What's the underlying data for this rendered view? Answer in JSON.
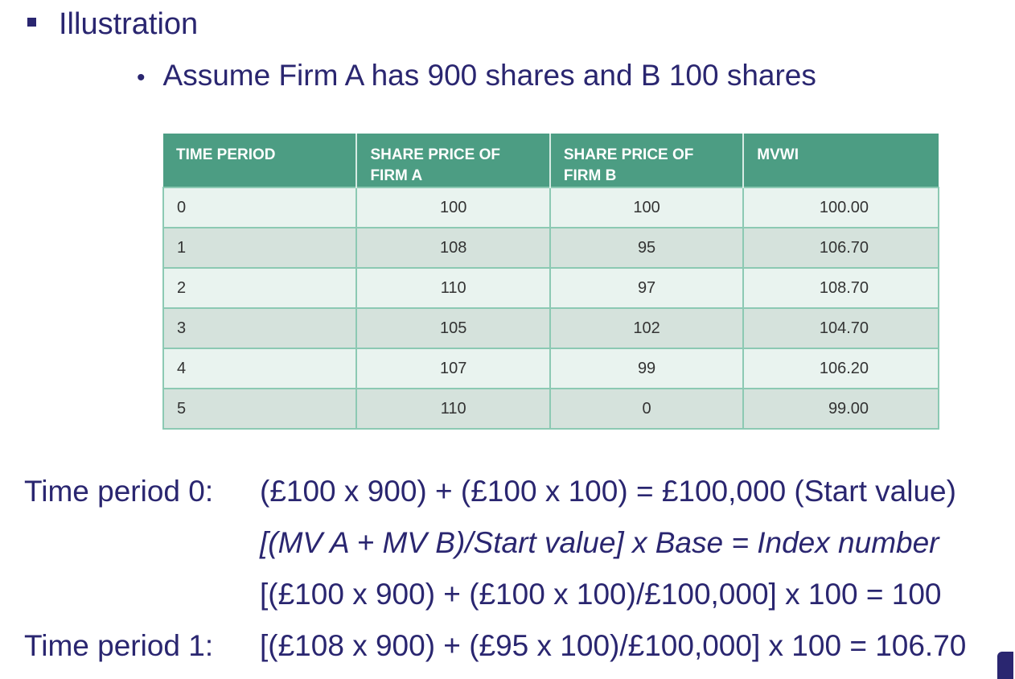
{
  "bullet_main": "Illustration",
  "bullet_sub": "Assume Firm A has 900 shares and B 100 shares",
  "table": {
    "headers": [
      "TIME PERIOD",
      "SHARE PRICE OF FIRM A",
      "SHARE PRICE OF FIRM B",
      "MVWI"
    ],
    "rows": [
      [
        "0",
        "100",
        "100",
        "100.00"
      ],
      [
        "1",
        "108",
        "95",
        "106.70"
      ],
      [
        "2",
        "110",
        "97",
        "108.70"
      ],
      [
        "3",
        "105",
        "102",
        "104.70"
      ],
      [
        "4",
        "107",
        "99",
        "106.20"
      ],
      [
        "5",
        "110",
        "0",
        "99.00"
      ]
    ]
  },
  "calc": {
    "line1_label": "Time period 0:",
    "line1_formula": "(£100 x 900) + (£100 x 100) =  £100,000 (Start value)",
    "line2_formula": "[(MV A + MV B)/Start value] x Base = Index number",
    "line3_formula": "[(£100 x 900) + (£100 x 100)/£100,000] x 100 = 100",
    "line4_label": "Time period 1:",
    "line4_formula": "[(£108 x 900) + (£95 x 100)/£100,000] x 100 = 106.70"
  }
}
